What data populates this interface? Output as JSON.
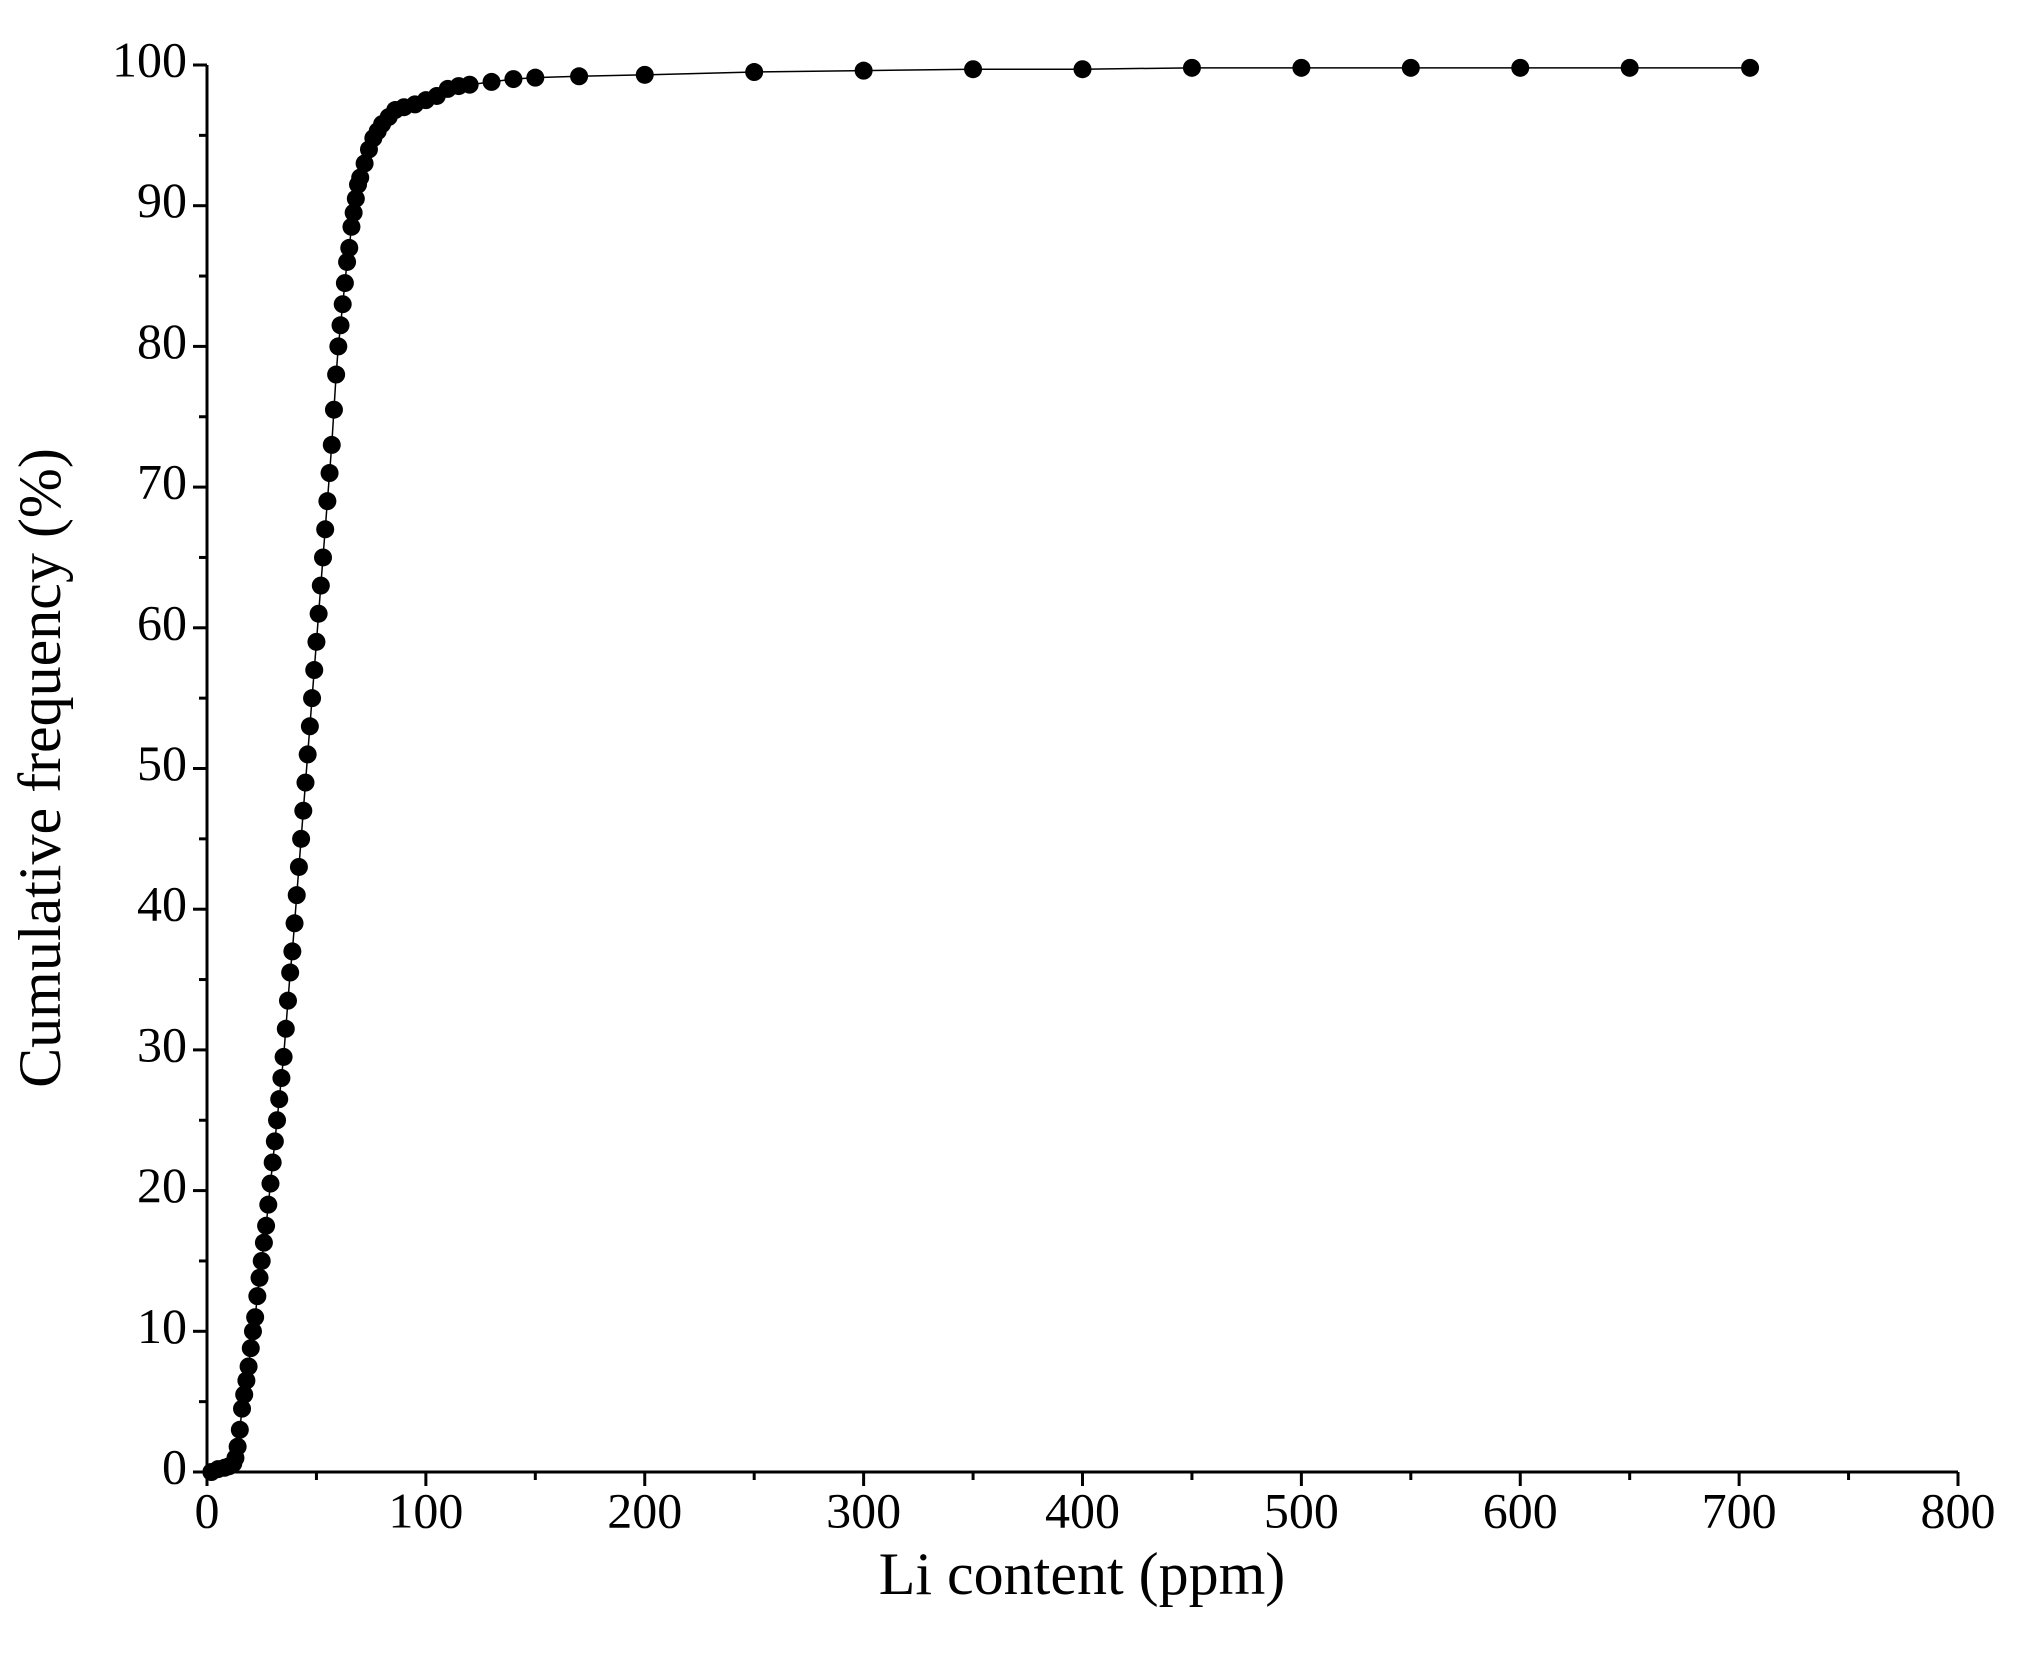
{
  "chart_data": {
    "type": "line",
    "marker": "circle",
    "color": "#000000",
    "x_label": "Li content (ppm)",
    "y_label": "Cumulative frequency (%)",
    "xlim": [
      0,
      800
    ],
    "ylim": [
      0,
      100
    ],
    "xticks": [
      0,
      100,
      200,
      300,
      400,
      500,
      600,
      700,
      800
    ],
    "yticks": [
      0,
      10,
      20,
      30,
      40,
      50,
      60,
      70,
      80,
      90,
      100
    ],
    "grid": false,
    "x": [
      2,
      5,
      8,
      10,
      12,
      13,
      14,
      15,
      16,
      17,
      18,
      19,
      20,
      21,
      22,
      23,
      24,
      25,
      26,
      27,
      28,
      29,
      30,
      31,
      32,
      33,
      34,
      35,
      36,
      37,
      38,
      39,
      40,
      41,
      42,
      43,
      44,
      45,
      46,
      47,
      48,
      49,
      50,
      51,
      52,
      53,
      54,
      55,
      56,
      57,
      58,
      59,
      60,
      61,
      62,
      63,
      64,
      65,
      66,
      67,
      68,
      69,
      70,
      72,
      74,
      76,
      78,
      80,
      83,
      86,
      90,
      95,
      100,
      105,
      110,
      115,
      120,
      130,
      140,
      150,
      170,
      200,
      250,
      300,
      350,
      400,
      450,
      500,
      550,
      600,
      650,
      705
    ],
    "values": [
      0,
      0.2,
      0.3,
      0.4,
      0.6,
      1,
      1.8,
      3,
      4.5,
      5.5,
      6.5,
      7.5,
      8.8,
      10,
      11,
      12.5,
      13.8,
      15,
      16.3,
      17.5,
      19,
      20.5,
      22,
      23.5,
      25,
      26.5,
      28,
      29.5,
      31.5,
      33.5,
      35.5,
      37,
      39,
      41,
      43,
      45,
      47,
      49,
      51,
      53,
      55,
      57,
      59,
      61,
      63,
      65,
      67,
      69,
      71,
      73,
      75.5,
      78,
      80,
      81.5,
      83,
      84.5,
      86,
      87,
      88.5,
      89.5,
      90.5,
      91.5,
      92,
      93,
      94,
      94.8,
      95.3,
      95.8,
      96.3,
      96.8,
      97,
      97.2,
      97.5,
      97.8,
      98.3,
      98.5,
      98.6,
      98.8,
      99,
      99.1,
      99.2,
      99.3,
      99.5,
      99.6,
      99.7,
      99.7,
      99.8,
      99.8,
      99.8,
      99.8,
      99.8,
      99.8
    ]
  }
}
